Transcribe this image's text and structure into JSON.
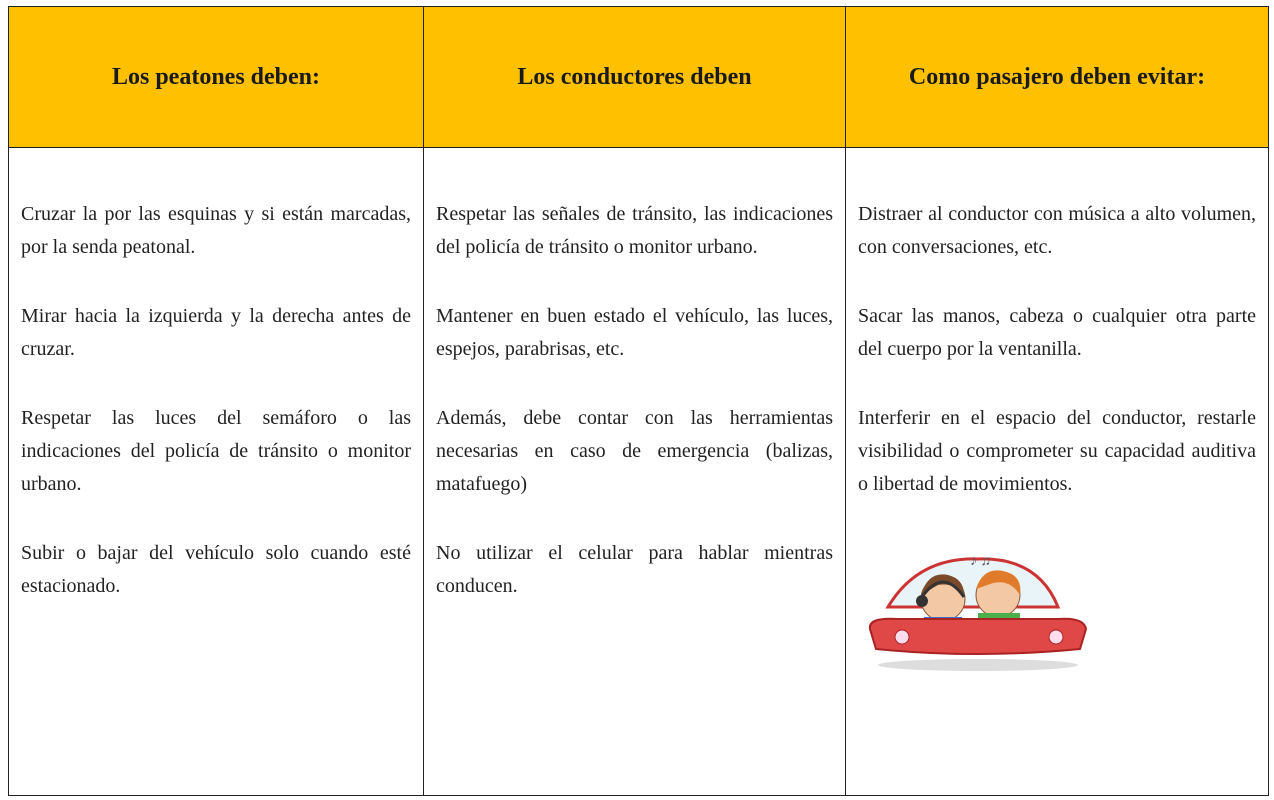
{
  "table": {
    "headers": [
      "Los peatones deben:",
      "Los conductores deben",
      "Como pasajero deben evitar:"
    ],
    "columns": [
      [
        "Cruzar la por las esquinas y si están marcadas, por la senda peatonal.",
        "Mirar hacia la izquierda y la derecha antes de cruzar.",
        "Respetar las luces del semáforo o las indicaciones del policía de tránsito o monitor urbano.",
        "Subir o bajar del vehículo solo cuando esté estacionado."
      ],
      [
        "Respetar las señales de tránsito, las indicaciones del policía de tránsito o monitor urbano.",
        "Mantener en buen estado el vehículo, las luces, espejos, parabrisas, etc.",
        "Además, debe contar con las herramientas necesarias en caso de emergencia (balizas, matafuego)",
        "No utilizar el celular para hablar mientras conducen."
      ],
      [
        "Distraer al conductor con música a alto volumen, con conversaciones, etc.",
        "Sacar las manos, cabeza o cualquier otra parte del cuerpo por la ventanilla.",
        "Interferir en el espacio del conductor, restarle visibilidad o comprometer su capacidad auditiva o libertad de movimientos."
      ]
    ]
  }
}
